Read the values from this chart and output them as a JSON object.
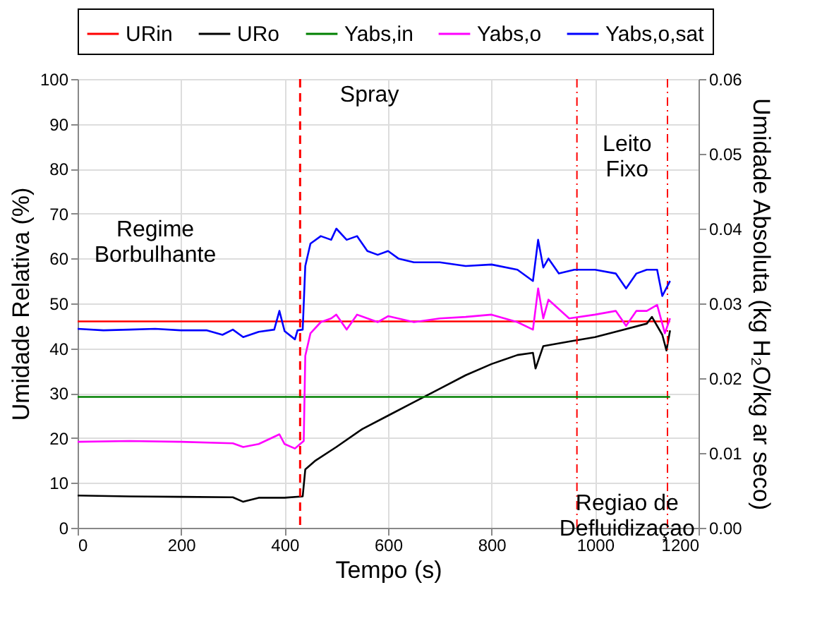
{
  "chart_data": {
    "type": "line",
    "xlabel": "Tempo (s)",
    "ylabel": "Umidade Relativa (%)",
    "y2label": "Umidade Absoluta (kg H₂O/kg ar seco)",
    "xlim": [
      0,
      1200
    ],
    "xticks": [
      0,
      200,
      400,
      600,
      800,
      1000,
      1200
    ],
    "ylim": [
      0,
      100
    ],
    "yticks": [
      0,
      10,
      20,
      30,
      40,
      50,
      60,
      70,
      80,
      90,
      100
    ],
    "y2lim": [
      0,
      0.06
    ],
    "y2ticks": [
      {
        "value": 0,
        "label": "0.00"
      },
      {
        "value": 0.01,
        "label": "0.01"
      },
      {
        "value": 0.02,
        "label": "0.02"
      },
      {
        "value": 0.03,
        "label": "0.03"
      },
      {
        "value": 0.04,
        "label": "0.04"
      },
      {
        "value": 0.05,
        "label": "0.05"
      },
      {
        "value": 0.06,
        "label": "0.06"
      }
    ],
    "grid": true,
    "legend": "top",
    "marker": "none",
    "line_style": "solid",
    "series": [
      {
        "name": "URin",
        "color": "#ff0000",
        "x": [
          0,
          1145
        ],
        "values": [
          46,
          46
        ]
      },
      {
        "name": "URo",
        "color": "#000000",
        "x": [
          0,
          100,
          200,
          300,
          320,
          350,
          400,
          435,
          440,
          460,
          500,
          550,
          600,
          650,
          700,
          750,
          800,
          850,
          880,
          885,
          900,
          950,
          1000,
          1050,
          1100,
          1110,
          1130,
          1138,
          1145
        ],
        "values": [
          7.2,
          7,
          6.9,
          6.8,
          5.8,
          6.7,
          6.7,
          7,
          13,
          15,
          18,
          22,
          25,
          28,
          31,
          34,
          36.5,
          38.5,
          39,
          35.5,
          40.5,
          41.5,
          42.5,
          44,
          45.5,
          47,
          43,
          39.5,
          44
        ]
      },
      {
        "name": "Yabs,in",
        "color": "#008000",
        "axis": "y2",
        "x": [
          0,
          1145
        ],
        "values": [
          0.0175,
          0.0175
        ]
      },
      {
        "name": "Yabs,o",
        "color": "#ff00ff",
        "axis": "y2",
        "x": [
          0,
          100,
          200,
          300,
          320,
          350,
          390,
          400,
          420,
          430,
          437,
          440,
          450,
          470,
          490,
          500,
          520,
          540,
          580,
          600,
          650,
          700,
          750,
          800,
          850,
          880,
          890,
          900,
          910,
          950,
          1000,
          1040,
          1060,
          1080,
          1100,
          1120,
          1135,
          1145
        ],
        "values": [
          0.0115,
          0.0116,
          0.0115,
          0.0113,
          0.0108,
          0.0112,
          0.0125,
          0.0112,
          0.0106,
          0.0112,
          0.0116,
          0.023,
          0.026,
          0.0275,
          0.028,
          0.0285,
          0.0265,
          0.0285,
          0.0275,
          0.0283,
          0.0275,
          0.028,
          0.0282,
          0.0285,
          0.0275,
          0.0265,
          0.032,
          0.028,
          0.0305,
          0.028,
          0.0285,
          0.029,
          0.027,
          0.029,
          0.029,
          0.0298,
          0.026,
          0.028
        ]
      },
      {
        "name": "Yabs,o,sat",
        "color": "#0000ff",
        "axis": "y2",
        "x": [
          0,
          50,
          100,
          150,
          200,
          250,
          280,
          300,
          320,
          350,
          380,
          390,
          400,
          420,
          425,
          435,
          440,
          450,
          470,
          490,
          500,
          520,
          540,
          560,
          580,
          600,
          620,
          650,
          700,
          750,
          800,
          850,
          880,
          890,
          900,
          910,
          930,
          960,
          1000,
          1040,
          1060,
          1080,
          1100,
          1120,
          1130,
          1145
        ],
        "values": [
          0.0266,
          0.0264,
          0.0265,
          0.0266,
          0.0264,
          0.0264,
          0.0258,
          0.0265,
          0.0255,
          0.0262,
          0.0265,
          0.029,
          0.0263,
          0.0252,
          0.0264,
          0.0265,
          0.035,
          0.038,
          0.039,
          0.0385,
          0.04,
          0.0385,
          0.039,
          0.037,
          0.0365,
          0.037,
          0.036,
          0.0355,
          0.0355,
          0.035,
          0.0352,
          0.0345,
          0.033,
          0.0385,
          0.0348,
          0.036,
          0.034,
          0.0345,
          0.0345,
          0.034,
          0.032,
          0.034,
          0.0345,
          0.0345,
          0.031,
          0.033
        ]
      }
    ],
    "ref_lines": [
      {
        "axis": "x",
        "value": 430,
        "color": "#ff0000",
        "line_style": "dashed"
      },
      {
        "axis": "x",
        "value": 965,
        "color": "#ff0000",
        "line_style": "dashdot"
      },
      {
        "axis": "x",
        "value": 1140,
        "color": "#ff0000",
        "line_style": "dashdot"
      }
    ],
    "annotations": [
      "Spray",
      "Regime\nBorbulhante",
      "Leito\nFixo",
      "Regiao de\nDefluidizaçao"
    ]
  }
}
